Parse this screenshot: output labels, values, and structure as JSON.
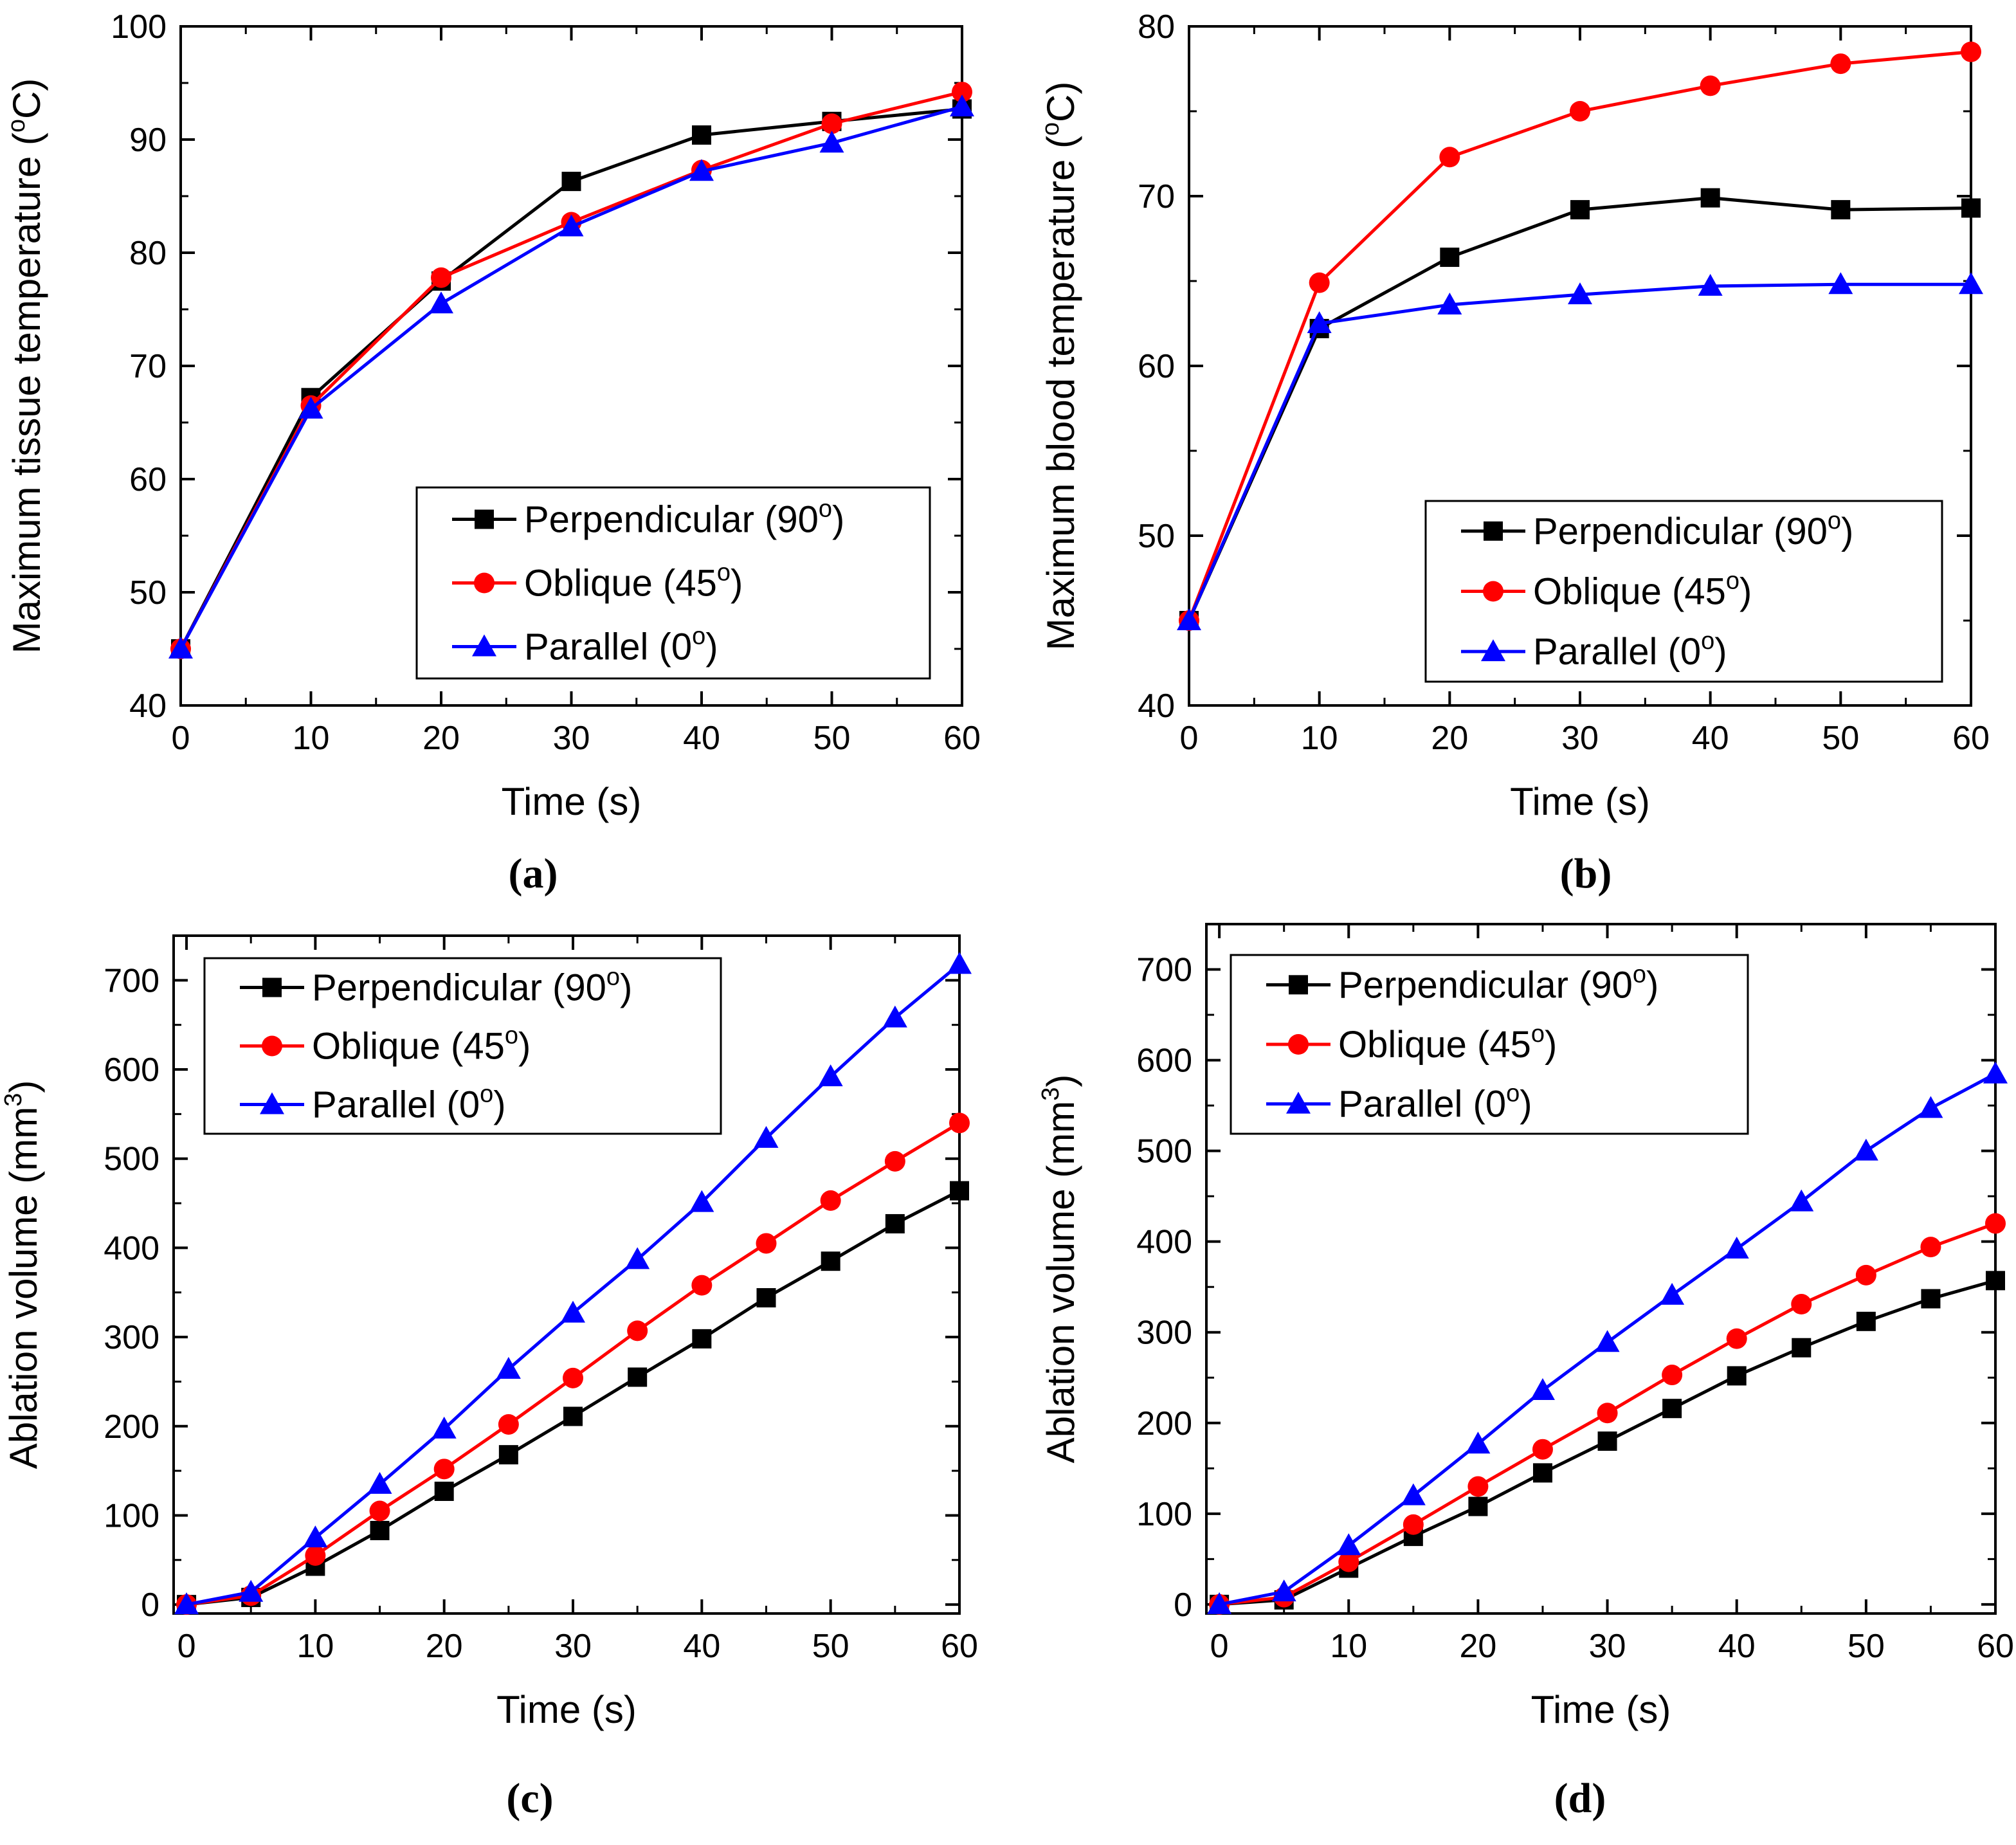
{
  "chart_data": [
    {
      "type": "line",
      "panel_label": "(a)",
      "xlabel": "Time (s)",
      "ylabel_main": "Maximum tissue temperature (",
      "ylabel_sup": "o",
      "ylabel_end": "C)",
      "xlim": [
        0,
        60
      ],
      "ylim": [
        40,
        100
      ],
      "xticks": [
        0,
        10,
        20,
        30,
        40,
        50,
        60
      ],
      "yticks": [
        40,
        50,
        60,
        70,
        80,
        90,
        100
      ],
      "legend_position": "bottom-right",
      "series": [
        {
          "name": "Perpendicular (90",
          "sup": "o",
          "name_end": ")",
          "color": "#000000",
          "marker": "square",
          "x": [
            0,
            10,
            20,
            30,
            40,
            50,
            60
          ],
          "y": [
            45,
            67.2,
            77.5,
            86.3,
            90.4,
            91.6,
            92.7
          ]
        },
        {
          "name": "Oblique (45",
          "sup": "o",
          "name_end": ")",
          "color": "#ff0000",
          "marker": "circle",
          "x": [
            0,
            10,
            20,
            30,
            40,
            50,
            60
          ],
          "y": [
            45,
            66.5,
            77.8,
            82.7,
            87.3,
            91.4,
            94.2
          ]
        },
        {
          "name": "Parallel (0",
          "sup": "o",
          "name_end": ")",
          "color": "#0000ff",
          "marker": "triangle",
          "x": [
            0,
            10,
            20,
            30,
            40,
            50,
            60
          ],
          "y": [
            45,
            66.2,
            75.5,
            82.3,
            87.2,
            89.7,
            92.9
          ]
        }
      ]
    },
    {
      "type": "line",
      "panel_label": "(b)",
      "xlabel": "Time (s)",
      "ylabel_main": "Maximum blood temperature (",
      "ylabel_sup": "o",
      "ylabel_end": "C)",
      "xlim": [
        0,
        60
      ],
      "ylim": [
        40,
        80
      ],
      "xticks": [
        0,
        10,
        20,
        30,
        40,
        50,
        60
      ],
      "yticks": [
        40,
        50,
        60,
        70,
        80
      ],
      "legend_position": "bottom-right",
      "series": [
        {
          "name": "Perpendicular (90",
          "sup": "o",
          "name_end": ")",
          "color": "#000000",
          "marker": "square",
          "x": [
            0,
            10,
            20,
            30,
            40,
            50,
            60
          ],
          "y": [
            45,
            62.2,
            66.4,
            69.2,
            69.9,
            69.2,
            69.3
          ]
        },
        {
          "name": "Oblique (45",
          "sup": "o",
          "name_end": ")",
          "color": "#ff0000",
          "marker": "circle",
          "x": [
            0,
            10,
            20,
            30,
            40,
            50,
            60
          ],
          "y": [
            45,
            64.9,
            72.3,
            75,
            76.5,
            77.8,
            78.5
          ]
        },
        {
          "name": "Parallel (0",
          "sup": "o",
          "name_end": ")",
          "color": "#0000ff",
          "marker": "triangle",
          "x": [
            0,
            10,
            20,
            30,
            40,
            50,
            60
          ],
          "y": [
            45,
            62.5,
            63.6,
            64.2,
            64.7,
            64.8,
            64.8
          ]
        }
      ]
    },
    {
      "type": "line",
      "panel_label": "(c)",
      "xlabel": "Time (s)",
      "ylabel_main": "Ablation volume (mm",
      "ylabel_sup": "3",
      "ylabel_end": ")",
      "xlim": [
        -1,
        60
      ],
      "ylim": [
        -10,
        750
      ],
      "xticks": [
        0,
        10,
        20,
        30,
        40,
        50,
        60
      ],
      "yticks": [
        0,
        100,
        200,
        300,
        400,
        500,
        600,
        700
      ],
      "legend_position": "top-left",
      "series": [
        {
          "name": "Perpendicular (90",
          "sup": "o",
          "name_end": ")",
          "color": "#000000",
          "marker": "square",
          "x": [
            0,
            5,
            10,
            15,
            20,
            25,
            30,
            35,
            40,
            45,
            50,
            55,
            60
          ],
          "y": [
            0,
            8,
            43,
            83,
            127,
            168,
            211,
            255,
            298,
            344,
            385,
            427,
            464
          ]
        },
        {
          "name": "Oblique (45",
          "sup": "o",
          "name_end": ")",
          "color": "#ff0000",
          "marker": "circle",
          "x": [
            0,
            5,
            10,
            15,
            20,
            25,
            30,
            35,
            40,
            45,
            50,
            55,
            60
          ],
          "y": [
            0,
            10,
            55,
            105,
            152,
            202,
            254,
            307,
            358,
            405,
            453,
            497,
            540
          ]
        },
        {
          "name": "Parallel (0",
          "sup": "o",
          "name_end": ")",
          "color": "#0000ff",
          "marker": "triangle",
          "x": [
            0,
            5,
            10,
            15,
            20,
            25,
            30,
            35,
            40,
            45,
            50,
            55,
            60
          ],
          "y": [
            0,
            14,
            75,
            135,
            197,
            264,
            327,
            387,
            451,
            523,
            592,
            658,
            718
          ]
        }
      ]
    },
    {
      "type": "line",
      "panel_label": "(d)",
      "xlabel": "Time (s)",
      "ylabel_main": "Ablation volume (mm",
      "ylabel_sup": "3",
      "ylabel_end": ")",
      "xlim": [
        -1,
        60
      ],
      "ylim": [
        -10,
        750
      ],
      "xticks": [
        0,
        10,
        20,
        30,
        40,
        50,
        60
      ],
      "yticks": [
        0,
        100,
        200,
        300,
        400,
        500,
        600,
        700
      ],
      "legend_position": "top-left",
      "series": [
        {
          "name": "Perpendicular (90",
          "sup": "o",
          "name_end": ")",
          "color": "#000000",
          "marker": "square",
          "x": [
            0,
            5,
            10,
            15,
            20,
            25,
            30,
            35,
            40,
            45,
            50,
            55,
            60
          ],
          "y": [
            0,
            5,
            40,
            75,
            108,
            145,
            180,
            216,
            252,
            283,
            312,
            337,
            357
          ]
        },
        {
          "name": "Oblique (45",
          "sup": "o",
          "name_end": ")",
          "color": "#ff0000",
          "marker": "circle",
          "x": [
            0,
            5,
            10,
            15,
            20,
            25,
            30,
            35,
            40,
            45,
            50,
            55,
            60
          ],
          "y": [
            0,
            8,
            47,
            88,
            130,
            171,
            211,
            253,
            293,
            331,
            363,
            394,
            420
          ]
        },
        {
          "name": "Parallel (0",
          "sup": "o",
          "name_end": ")",
          "color": "#0000ff",
          "marker": "triangle",
          "x": [
            0,
            5,
            10,
            15,
            20,
            25,
            30,
            35,
            40,
            45,
            50,
            55,
            60
          ],
          "y": [
            0,
            14,
            65,
            120,
            177,
            236,
            289,
            341,
            392,
            444,
            500,
            547,
            585
          ]
        }
      ]
    }
  ]
}
